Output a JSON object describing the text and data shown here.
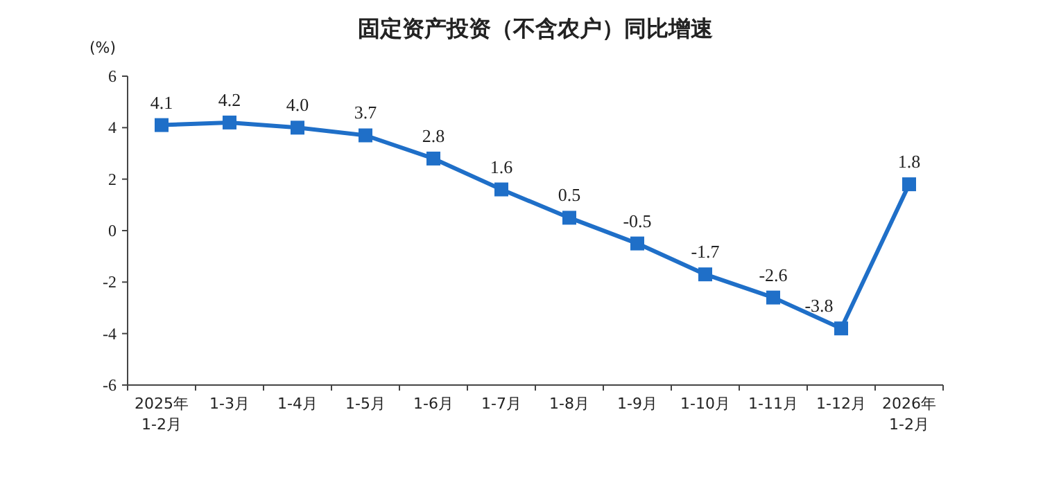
{
  "chart_data": {
    "type": "line",
    "title": "固定资产投资（不含农户）同比增速",
    "ylabel": "(%)",
    "categories": [
      "2025年 1-2月",
      "1-3月",
      "1-4月",
      "1-5月",
      "1-6月",
      "1-7月",
      "1-8月",
      "1-9月",
      "1-10月",
      "1-11月",
      "1-12月",
      "2026年 1-2月"
    ],
    "series": [
      {
        "color": "#1f6fc8",
        "values": [
          4.1,
          4.2,
          4.0,
          3.7,
          2.8,
          1.6,
          0.5,
          -0.5,
          -1.7,
          -2.6,
          -3.8,
          1.8
        ],
        "value_labels": [
          "4.1",
          "4.2",
          "4.0",
          "3.7",
          "2.8",
          "1.6",
          "0.5",
          "-0.5",
          "-1.7",
          "-2.6",
          "-3.8",
          "1.8"
        ]
      }
    ],
    "ylim": [
      -6,
      6
    ],
    "yticks": [
      -6,
      -4,
      -2,
      0,
      2,
      4,
      6
    ],
    "marker": "square"
  }
}
